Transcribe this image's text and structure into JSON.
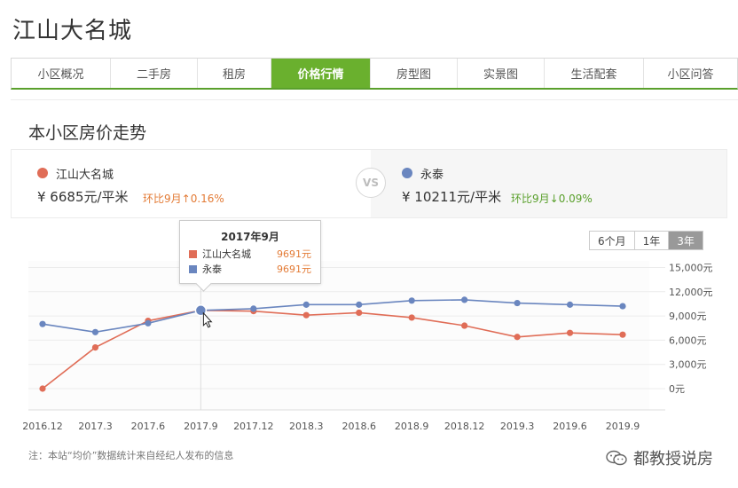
{
  "page_title": "江山大名城",
  "tabs": [
    {
      "label": "小区概况",
      "active": false
    },
    {
      "label": "二手房",
      "active": false
    },
    {
      "label": "租房",
      "active": false
    },
    {
      "label": "价格行情",
      "active": true
    },
    {
      "label": "房型图",
      "active": false
    },
    {
      "label": "实景图",
      "active": false
    },
    {
      "label": "生活配套",
      "active": false
    },
    {
      "label": "小区问答",
      "active": false
    }
  ],
  "section_title": "本小区房价走势",
  "compare": {
    "left": {
      "name": "江山大名城",
      "price": "¥  6685元/平米",
      "change": "环比9月↑0.16%",
      "dot_color": "#e06d57",
      "change_color": "#e37b36"
    },
    "vs": "VS",
    "right": {
      "name": "永泰",
      "price": "¥  10211元/平米",
      "change": "环比9月↓0.09%",
      "dot_color": "#6a86bf",
      "change_color": "#5aa02c"
    }
  },
  "range_buttons": [
    {
      "label": "6个月",
      "active": false
    },
    {
      "label": "1年",
      "active": false
    },
    {
      "label": "3年",
      "active": true
    }
  ],
  "tooltip": {
    "title": "2017年9月",
    "rows": [
      {
        "name": "江山大名城",
        "value": "9691元",
        "color": "#e06d57"
      },
      {
        "name": "永泰",
        "value": "9691元",
        "color": "#6a86bf"
      }
    ]
  },
  "chart_data": {
    "type": "line",
    "x": [
      "2016.12",
      "2017.3",
      "2017.6",
      "2017.9",
      "2017.12",
      "2018.3",
      "2018.6",
      "2018.9",
      "2018.12",
      "2019.3",
      "2019.6",
      "2019.9"
    ],
    "x_ticks": [
      "2016.12",
      "2017.3",
      "2017.6",
      "2017.9",
      "2017.12",
      "2018.3",
      "2018.6",
      "2018.9",
      "2018.12",
      "2019.3",
      "2019.6",
      "2019.9"
    ],
    "y_ticks": [
      "15,000元",
      "12,000元",
      "9,000元",
      "6,000元",
      "3,000元",
      "0元"
    ],
    "ylim": [
      0,
      15000
    ],
    "grid": true,
    "series": [
      {
        "name": "江山大名城",
        "color": "#e06d57",
        "values": [
          0,
          5100,
          8400,
          9691,
          9600,
          9100,
          9400,
          8800,
          7800,
          6400,
          6900,
          6685
        ]
      },
      {
        "name": "永泰",
        "color": "#6a86bf",
        "values": [
          8000,
          7000,
          8100,
          9691,
          9900,
          10400,
          10400,
          10900,
          11000,
          10600,
          10400,
          10211
        ]
      }
    ],
    "highlight_index": 3
  },
  "note": "注：本站“均价”数据统计来自经纪人发布的信息",
  "watermark": "都教授说房"
}
